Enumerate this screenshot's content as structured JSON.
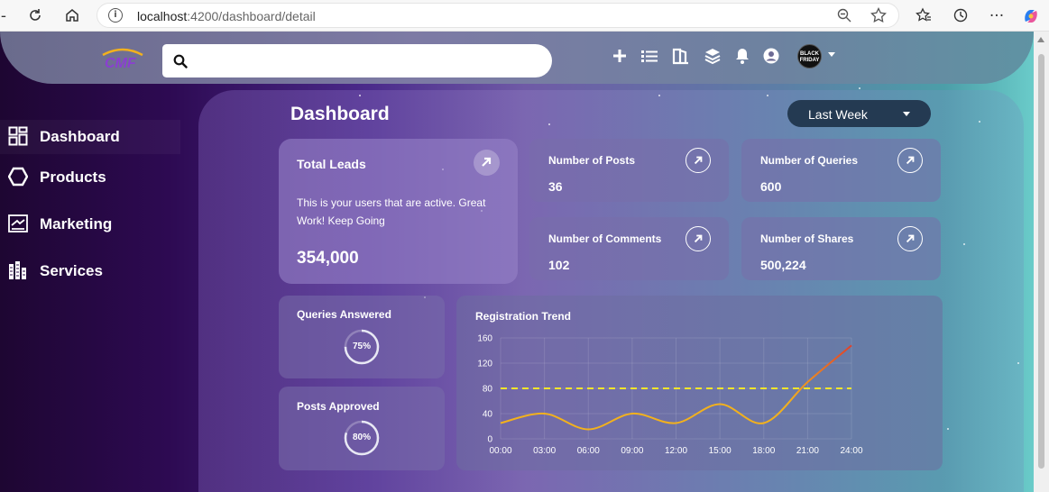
{
  "browser": {
    "url_host": "localhost",
    "url_path": ":4200/dashboard/detail"
  },
  "search": {
    "placeholder": ""
  },
  "brand": {
    "logo_text": "CMF"
  },
  "avatar": {
    "text_line1": "BLACK",
    "text_line2": "FRIDAY"
  },
  "sidebar": {
    "items": [
      {
        "label": "Dashboard",
        "icon": "dashboard-icon"
      },
      {
        "label": "Products",
        "icon": "products-icon"
      },
      {
        "label": "Marketing",
        "icon": "marketing-icon"
      },
      {
        "label": "Services",
        "icon": "services-icon"
      }
    ]
  },
  "header": {
    "title": "Dashboard",
    "period": "Last Week"
  },
  "total_leads": {
    "title": "Total Leads",
    "description": "This is your users that are active. Great Work! Keep Going",
    "value": "354,000"
  },
  "stats": [
    {
      "title": "Number of Posts",
      "value": "36"
    },
    {
      "title": "Number of Queries",
      "value": "600"
    },
    {
      "title": "Number of Comments",
      "value": "102"
    },
    {
      "title": "Number of Shares",
      "value": "500,224"
    }
  ],
  "rings": [
    {
      "title": "Queries Answered",
      "percent_label": "75%",
      "percent": 75
    },
    {
      "title": "Posts Approved",
      "percent_label": "80%",
      "percent": 80
    }
  ],
  "chart_data": {
    "type": "line",
    "title": "Registration Trend",
    "categories": [
      "00:00",
      "03:00",
      "06:00",
      "09:00",
      "12:00",
      "15:00",
      "18:00",
      "21:00",
      "24:00"
    ],
    "y_ticks": [
      "0",
      "40",
      "80",
      "120",
      "160"
    ],
    "ylim": [
      0,
      160
    ],
    "series": [
      {
        "values": [
          25,
          40,
          15,
          40,
          25,
          55,
          25,
          90,
          148
        ],
        "color_start": "#f2b11d",
        "color_end": "#e0402a"
      }
    ],
    "threshold": {
      "value": 80,
      "color": "#f5e52a",
      "style": "dashed"
    },
    "grid": true
  },
  "colors": {
    "accent_dark": "#243a52",
    "line_yellow": "#f2b11d",
    "line_red": "#e0402a"
  }
}
